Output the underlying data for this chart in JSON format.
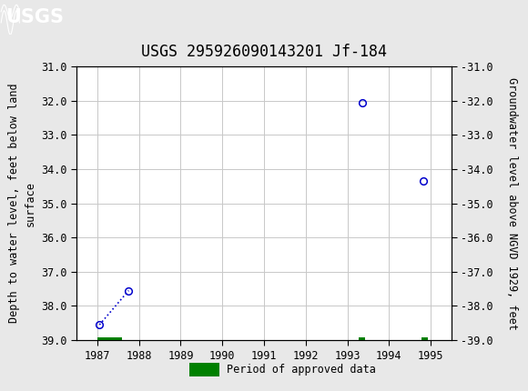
{
  "title": "USGS 295926090143201 Jf-184",
  "ylabel_left": "Depth to water level, feet below land\nsurface",
  "ylabel_right": "Groundwater level above NGVD 1929, feet",
  "xlim": [
    1986.5,
    1995.5
  ],
  "ylim_left": [
    31.0,
    39.0
  ],
  "ylim_right": [
    -31.0,
    -39.0
  ],
  "yticks_left": [
    31.0,
    32.0,
    33.0,
    34.0,
    35.0,
    36.0,
    37.0,
    38.0,
    39.0
  ],
  "yticks_right": [
    -31.0,
    -32.0,
    -33.0,
    -34.0,
    -35.0,
    -36.0,
    -37.0,
    -38.0,
    -39.0
  ],
  "xticks": [
    1987,
    1988,
    1989,
    1990,
    1991,
    1992,
    1993,
    1994,
    1995
  ],
  "data_points_x": [
    1987.05,
    1987.75,
    1993.35,
    1994.82
  ],
  "data_points_y": [
    38.55,
    37.55,
    32.05,
    34.35
  ],
  "connected_pair": [
    0,
    1
  ],
  "point_color": "#0000cc",
  "line_color": "#0000cc",
  "bar_color": "#008000",
  "bar_segments": [
    {
      "x_start": 1987.0,
      "x_end": 1987.58,
      "y_center": 39.0,
      "height": 0.16
    },
    {
      "x_start": 1993.27,
      "x_end": 1993.42,
      "y_center": 39.0,
      "height": 0.16
    },
    {
      "x_start": 1994.78,
      "x_end": 1994.93,
      "y_center": 39.0,
      "height": 0.16
    }
  ],
  "legend_label": "Period of approved data",
  "legend_bar_color": "#008000",
  "header_bg_color": "#1d6b3e",
  "header_text_color": "#ffffff",
  "plot_bg_color": "#ffffff",
  "fig_bg_color": "#e8e8e8",
  "grid_color": "#c8c8c8",
  "title_fontsize": 12,
  "axis_label_fontsize": 8.5,
  "tick_fontsize": 8.5
}
